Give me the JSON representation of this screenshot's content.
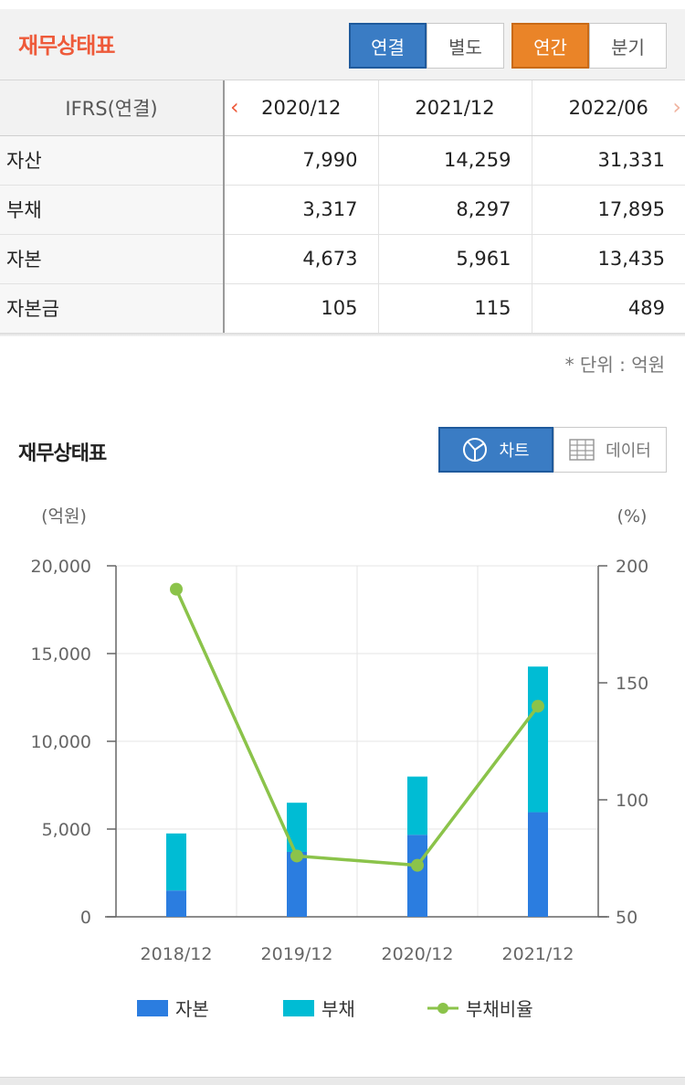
{
  "header": {
    "title": "재무상태표",
    "consolidation_tabs": [
      "연결",
      "별도"
    ],
    "consolidation_selected": "연결",
    "period_tabs": [
      "연간",
      "분기"
    ],
    "period_selected": "연간"
  },
  "table": {
    "corner_label": "IFRS(연결)",
    "periods": [
      "2020/12",
      "2021/12",
      "2022/06"
    ],
    "rows": [
      {
        "label": "자산",
        "values": [
          "7,990",
          "14,259",
          "31,331"
        ]
      },
      {
        "label": "부채",
        "values": [
          "3,317",
          "8,297",
          "17,895"
        ]
      },
      {
        "label": "자본",
        "values": [
          "4,673",
          "5,961",
          "13,435"
        ]
      },
      {
        "label": "자본금",
        "values": [
          "105",
          "115",
          "489"
        ]
      }
    ]
  },
  "unit_note": "* 단위 : 억원",
  "chart_section": {
    "title": "재무상태표",
    "chart_button": "차트",
    "data_button": "데이터",
    "icons": {
      "chart": "pie-chart-icon",
      "data": "table-grid-icon"
    }
  },
  "colors": {
    "accent_red": "#ee5a3a",
    "blue_tab": "#3a7cc4",
    "orange_tab": "#ea8428",
    "equity_bar": "#2b7de0",
    "liability_bar": "#00bcd4",
    "ratio_line": "#8bc34a"
  },
  "chart_data": {
    "type": "bar",
    "stacked": true,
    "categories": [
      "2018/12",
      "2019/12",
      "2020/12",
      "2021/12"
    ],
    "series": [
      {
        "name": "자본",
        "axis": "left",
        "values": [
          1500,
          3700,
          4673,
          5961
        ]
      },
      {
        "name": "부채",
        "axis": "left",
        "values": [
          3250,
          2800,
          3317,
          8297
        ]
      },
      {
        "name": "부채비율",
        "type": "line",
        "axis": "right",
        "values": [
          190,
          76,
          72,
          140
        ]
      }
    ],
    "y_left": {
      "label": "(억원)",
      "min": 0,
      "max": 20000,
      "ticks": [
        0,
        5000,
        10000,
        15000,
        20000
      ],
      "tick_labels": [
        "0",
        "5,000",
        "10,000",
        "15,000",
        "20,000"
      ]
    },
    "y_right": {
      "label": "(%)",
      "min": 50,
      "max": 200,
      "ticks": [
        50,
        100,
        150,
        200
      ],
      "tick_labels": [
        "50",
        "100",
        "150",
        "200"
      ]
    },
    "grid": true,
    "legend_position": "bottom"
  }
}
